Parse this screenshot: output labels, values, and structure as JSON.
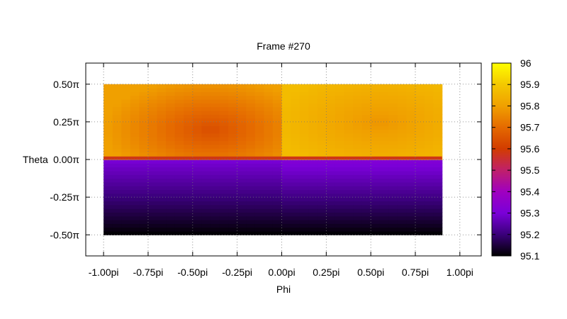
{
  "chart_data": {
    "type": "heatmap",
    "title": "Frame #270",
    "xlabel": "Phi",
    "ylabel": "Theta",
    "xlim": [
      -1.1,
      1.12
    ],
    "ylim": [
      -0.64,
      0.64
    ],
    "xticks": [
      {
        "value": -1.0,
        "label": "-1.00pi"
      },
      {
        "value": -0.75,
        "label": "-0.75pi"
      },
      {
        "value": -0.5,
        "label": "-0.50pi"
      },
      {
        "value": -0.25,
        "label": "-0.25pi"
      },
      {
        "value": 0.0,
        "label": "0.00pi"
      },
      {
        "value": 0.25,
        "label": "0.25pi"
      },
      {
        "value": 0.5,
        "label": "0.50pi"
      },
      {
        "value": 0.75,
        "label": "0.75pi"
      },
      {
        "value": 1.0,
        "label": "1.00pi"
      }
    ],
    "yticks": [
      {
        "value": 0.5,
        "label": "0.50π"
      },
      {
        "value": 0.25,
        "label": "0.25π"
      },
      {
        "value": 0.0,
        "label": "0.00π"
      },
      {
        "value": -0.25,
        "label": "-0.25π"
      },
      {
        "value": -0.5,
        "label": "-0.50π"
      }
    ],
    "grid": true,
    "data_extent": {
      "phi": [
        -1.0,
        0.9
      ],
      "theta": [
        -0.5,
        0.5
      ]
    },
    "regions": [
      {
        "phi": [
          -1.0,
          0.0
        ],
        "theta": [
          0.0,
          0.5
        ],
        "value_min": 95.64,
        "value_max": 95.8,
        "hotspot_phi": -0.4,
        "hotspot_theta": 0.2
      },
      {
        "phi": [
          0.0,
          0.9
        ],
        "theta": [
          0.0,
          0.5
        ],
        "value_min": 95.78,
        "value_max": 95.87,
        "hotspot_phi": 0.55,
        "hotspot_theta": 0.25
      },
      {
        "phi": [
          -1.0,
          0.0
        ],
        "theta": [
          -0.5,
          0.0
        ],
        "value_min": 95.1,
        "value_max": 95.3
      },
      {
        "phi": [
          0.0,
          0.9
        ],
        "theta": [
          -0.5,
          0.0
        ],
        "value_min": 95.1,
        "value_max": 95.32
      }
    ],
    "colorbar": {
      "range": [
        95.1,
        96.0
      ],
      "ticks": [
        "96",
        "95.9",
        "95.8",
        "95.7",
        "95.6",
        "95.5",
        "95.4",
        "95.3",
        "95.2",
        "95.1"
      ],
      "palette": [
        "#000000",
        "#3a007a",
        "#7a00d8",
        "#a000c0",
        "#c0206a",
        "#d23c00",
        "#e56a00",
        "#f0a000",
        "#f4c800",
        "#ffff00"
      ]
    }
  }
}
